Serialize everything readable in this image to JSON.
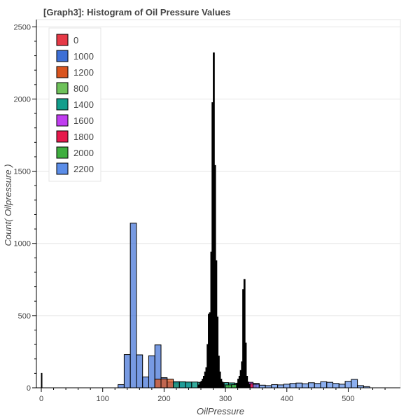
{
  "chart_data": {
    "type": "bar",
    "title": "[Graph3]: Histogram of Oil Pressure Values",
    "xlabel": "OilPressure",
    "ylabel": "Count( Oilpressure )",
    "xlim": [
      -8,
      585
    ],
    "ylim": [
      0,
      2550
    ],
    "x_ticks": [
      "0",
      "100",
      "200",
      "300",
      "400",
      "500"
    ],
    "y_ticks": [
      "0",
      "500",
      "1000",
      "1500",
      "2000",
      "2500"
    ],
    "grid": "horizontal",
    "legend_position": "top-left",
    "series": [
      {
        "name": "0",
        "color": "#e63946",
        "alpha": 0.85,
        "bins": [
          [
            0,
            1,
            100
          ]
        ]
      },
      {
        "name": "1000",
        "color": "#3d6fd6",
        "alpha": 0.7,
        "bins": [
          [
            125,
            135,
            22
          ],
          [
            135,
            145,
            230
          ],
          [
            145,
            155,
            1140
          ],
          [
            155,
            165,
            228
          ],
          [
            165,
            175,
            75
          ],
          [
            175,
            185,
            222
          ],
          [
            185,
            195,
            297
          ],
          [
            195,
            205,
            70
          ],
          [
            205,
            215,
            40
          ],
          [
            215,
            225,
            42
          ],
          [
            225,
            235,
            38
          ],
          [
            235,
            245,
            35
          ]
        ]
      },
      {
        "name": "1200",
        "color": "#d9541e",
        "alpha": 0.75,
        "bins": [
          [
            185,
            195,
            60
          ],
          [
            195,
            205,
            62
          ],
          [
            205,
            215,
            60
          ],
          [
            215,
            225,
            30
          ]
        ]
      },
      {
        "name": "800",
        "color": "#6ec25a",
        "alpha": 0.85,
        "bins": [
          [
            265,
            270,
            15
          ],
          [
            270,
            275,
            18
          ],
          [
            275,
            280,
            20
          ]
        ]
      },
      {
        "name": "1400",
        "color": "#119e8c",
        "alpha": 0.85,
        "bins": [
          [
            215,
            225,
            40
          ],
          [
            225,
            235,
            42
          ],
          [
            235,
            245,
            40
          ],
          [
            245,
            255,
            40
          ],
          [
            255,
            265,
            38
          ],
          [
            265,
            275,
            35
          ],
          [
            275,
            285,
            40
          ],
          [
            285,
            295,
            38
          ],
          [
            295,
            305,
            36
          ],
          [
            305,
            315,
            34
          ],
          [
            315,
            325,
            32
          ]
        ]
      },
      {
        "name": "1600",
        "color": "#c03df0",
        "alpha": 0.85,
        "bins": [
          [
            325,
            335,
            35
          ],
          [
            335,
            345,
            38
          ],
          [
            345,
            355,
            30
          ]
        ]
      },
      {
        "name": "1800",
        "color": "#e6194b",
        "alpha": 0.85,
        "bins": [
          [
            330,
            340,
            25
          ],
          [
            340,
            350,
            28
          ]
        ]
      },
      {
        "name": "2000",
        "color": "#3fae3f",
        "alpha": 0.85,
        "bins": [
          [
            300,
            310,
            20
          ],
          [
            310,
            320,
            22
          ],
          [
            320,
            330,
            20
          ]
        ]
      },
      {
        "name": "2200",
        "color": "#5b8de8",
        "alpha": 0.7,
        "bins": [
          [
            345,
            355,
            25
          ],
          [
            355,
            365,
            18
          ],
          [
            365,
            375,
            15
          ],
          [
            375,
            385,
            22
          ],
          [
            385,
            395,
            20
          ],
          [
            395,
            405,
            25
          ],
          [
            405,
            415,
            30
          ],
          [
            415,
            425,
            33
          ],
          [
            425,
            435,
            28
          ],
          [
            435,
            445,
            35
          ],
          [
            445,
            455,
            30
          ],
          [
            455,
            465,
            42
          ],
          [
            465,
            475,
            38
          ],
          [
            475,
            485,
            30
          ],
          [
            485,
            495,
            25
          ],
          [
            495,
            505,
            45
          ],
          [
            505,
            515,
            58
          ],
          [
            515,
            525,
            15
          ],
          [
            525,
            535,
            8
          ]
        ]
      },
      {
        "name": "",
        "color": "#000000",
        "alpha": 1.0,
        "bins": [
          [
            256,
            258,
            20
          ],
          [
            258,
            260,
            35
          ],
          [
            260,
            262,
            45
          ],
          [
            262,
            264,
            60
          ],
          [
            264,
            266,
            80
          ],
          [
            266,
            268,
            110
          ],
          [
            268,
            270,
            140
          ],
          [
            270,
            272,
            300
          ],
          [
            272,
            274,
            510
          ],
          [
            274,
            276,
            520
          ],
          [
            276,
            278,
            940
          ],
          [
            278,
            280,
            1975
          ],
          [
            280,
            282,
            2320
          ],
          [
            282,
            284,
            1540
          ],
          [
            284,
            286,
            880
          ],
          [
            286,
            288,
            490
          ],
          [
            288,
            290,
            220
          ],
          [
            290,
            292,
            110
          ],
          [
            292,
            294,
            60
          ],
          [
            294,
            296,
            40
          ],
          [
            296,
            298,
            30
          ],
          [
            318,
            320,
            30
          ],
          [
            320,
            322,
            60
          ],
          [
            322,
            324,
            80
          ],
          [
            324,
            326,
            120
          ],
          [
            326,
            328,
            180
          ],
          [
            328,
            330,
            680
          ],
          [
            330,
            332,
            750
          ],
          [
            332,
            334,
            310
          ],
          [
            334,
            336,
            80
          ],
          [
            336,
            338,
            40
          ],
          [
            338,
            340,
            25
          ]
        ]
      }
    ]
  }
}
